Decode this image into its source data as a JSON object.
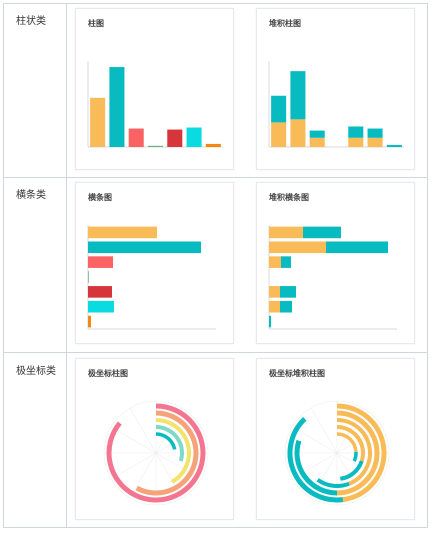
{
  "colors": {
    "orange": "#f8bb58",
    "teal": "#07bbc1",
    "coral": "#fb6264",
    "red": "#d6353b",
    "cyan": "#0adbe0",
    "dark_orange": "#f0890d",
    "green": "#6ab586",
    "pink": "#f4758f",
    "salmon": "#f6a37a",
    "yellow": "#f2e36a",
    "mint": "#7fd9c8",
    "axis": "#cccccc"
  },
  "rows": [
    {
      "label": "柱状类",
      "cards": [
        {
          "title": "柱图"
        },
        {
          "title": "堆积柱图"
        }
      ]
    },
    {
      "label": "横条类",
      "cards": [
        {
          "title": "横条图"
        },
        {
          "title": "堆积横条图"
        }
      ]
    },
    {
      "label": "极坐标类",
      "cards": [
        {
          "title": "极坐标柱图"
        },
        {
          "title": "极坐标堆积柱图"
        }
      ]
    }
  ],
  "chart_data": [
    {
      "type": "bar",
      "orientation": "vertical",
      "values": [
        48,
        78,
        18,
        0,
        17,
        19,
        3
      ],
      "colors": [
        "orange",
        "teal",
        "coral",
        "green",
        "red",
        "cyan",
        "dark_orange"
      ],
      "ylim": [
        0,
        80
      ]
    },
    {
      "type": "bar",
      "orientation": "vertical",
      "stacked": true,
      "series": [
        {
          "values": [
            24,
            27,
            9,
            0,
            9,
            9,
            0
          ],
          "color": "orange"
        },
        {
          "values": [
            26,
            47,
            7,
            0,
            11,
            9,
            2
          ],
          "color": "teal"
        }
      ],
      "ylim": [
        0,
        80
      ]
    },
    {
      "type": "bar",
      "orientation": "horizontal",
      "values": [
        69,
        113,
        25,
        0,
        24,
        26,
        3
      ],
      "colors": [
        "orange",
        "teal",
        "coral",
        "green",
        "red",
        "cyan",
        "dark_orange"
      ],
      "xlim": [
        0,
        128
      ]
    },
    {
      "type": "bar",
      "orientation": "horizontal",
      "stacked": true,
      "series": [
        {
          "values": [
            34,
            57,
            12,
            0,
            11,
            11,
            0
          ],
          "color": "orange"
        },
        {
          "values": [
            38,
            62,
            10,
            0,
            16,
            12,
            2
          ],
          "color": "teal"
        }
      ],
      "xlim": [
        0,
        128
      ]
    },
    {
      "type": "bar",
      "coordinate": "polar",
      "values": [
        0.86,
        0.58,
        0.42,
        0.3,
        0.22
      ],
      "colors": [
        "pink",
        "salmon",
        "yellow",
        "mint",
        "teal"
      ]
    },
    {
      "type": "bar",
      "coordinate": "polar",
      "stacked": true,
      "series": [
        {
          "values": [
            0.48,
            0.5,
            0.44,
            0.3,
            0.24
          ],
          "color": "orange"
        },
        {
          "values": [
            0.4,
            0.3,
            0.16,
            0.18,
            0.08
          ],
          "color": "teal"
        }
      ]
    }
  ]
}
